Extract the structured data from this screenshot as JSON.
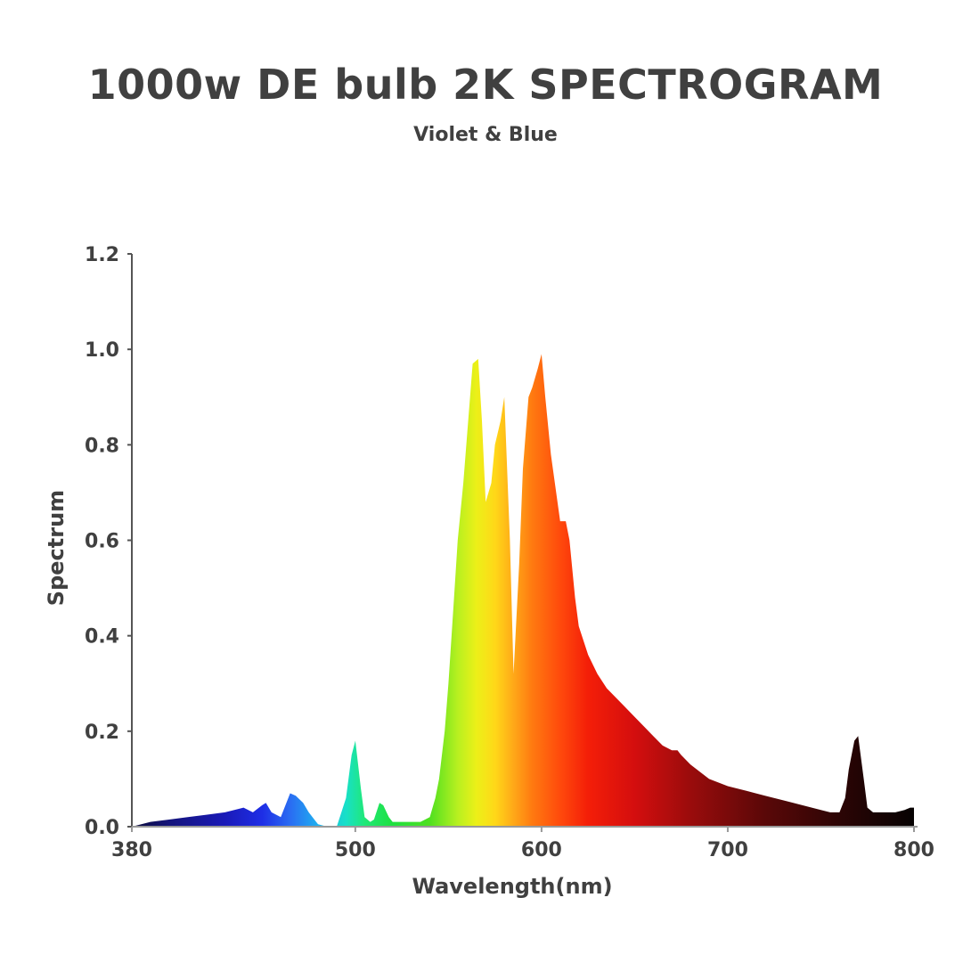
{
  "chart_data": {
    "type": "area",
    "title": "1000w DE bulb 2K SPECTROGRAM",
    "subtitle": "Violet & Blue",
    "xlabel": "Wavelength(nm)",
    "ylabel": "Spectrum",
    "xlim": [
      380,
      800
    ],
    "ylim": [
      0,
      1.2
    ],
    "x_ticks": [
      380,
      500,
      600,
      700,
      800
    ],
    "y_ticks": [
      "0.0",
      "0.2",
      "0.4",
      "0.6",
      "0.8",
      "1.0",
      "1.2"
    ],
    "grid": false,
    "legend": "none",
    "series": [
      {
        "x": [
          380,
          390,
          400,
          410,
          420,
          430,
          435,
          440,
          445,
          450,
          452,
          455,
          460,
          465,
          468,
          472,
          475,
          478,
          480,
          485,
          490,
          495,
          498,
          500,
          503,
          505,
          508,
          510,
          513,
          515,
          518,
          520,
          525,
          530,
          535,
          540,
          543,
          545,
          548,
          550,
          553,
          555,
          558,
          560,
          563,
          566,
          568,
          570,
          573,
          575,
          578,
          580,
          583,
          585,
          588,
          590,
          593,
          595,
          598,
          600,
          602,
          605,
          610,
          613,
          615,
          618,
          620,
          625,
          630,
          635,
          640,
          645,
          650,
          655,
          660,
          665,
          670,
          673,
          675,
          680,
          690,
          700,
          710,
          720,
          730,
          740,
          750,
          755,
          758,
          760,
          763,
          765,
          768,
          770,
          773,
          775,
          778,
          780,
          785,
          790,
          795,
          798,
          800
        ],
        "y": [
          0.0,
          0.01,
          0.015,
          0.02,
          0.025,
          0.03,
          0.035,
          0.04,
          0.03,
          0.045,
          0.05,
          0.03,
          0.02,
          0.07,
          0.065,
          0.05,
          0.03,
          0.015,
          0.005,
          0.0,
          0.0,
          0.06,
          0.15,
          0.18,
          0.08,
          0.02,
          0.01,
          0.015,
          0.05,
          0.045,
          0.02,
          0.01,
          0.01,
          0.01,
          0.01,
          0.02,
          0.06,
          0.1,
          0.2,
          0.3,
          0.48,
          0.6,
          0.72,
          0.82,
          0.97,
          0.98,
          0.85,
          0.68,
          0.72,
          0.8,
          0.85,
          0.9,
          0.6,
          0.32,
          0.55,
          0.75,
          0.9,
          0.92,
          0.96,
          0.99,
          0.9,
          0.78,
          0.64,
          0.64,
          0.6,
          0.48,
          0.42,
          0.36,
          0.32,
          0.29,
          0.27,
          0.25,
          0.23,
          0.21,
          0.19,
          0.17,
          0.16,
          0.16,
          0.15,
          0.13,
          0.1,
          0.085,
          0.075,
          0.065,
          0.055,
          0.045,
          0.035,
          0.03,
          0.03,
          0.03,
          0.06,
          0.12,
          0.18,
          0.19,
          0.1,
          0.04,
          0.03,
          0.03,
          0.03,
          0.03,
          0.035,
          0.04,
          0.04
        ]
      }
    ]
  }
}
